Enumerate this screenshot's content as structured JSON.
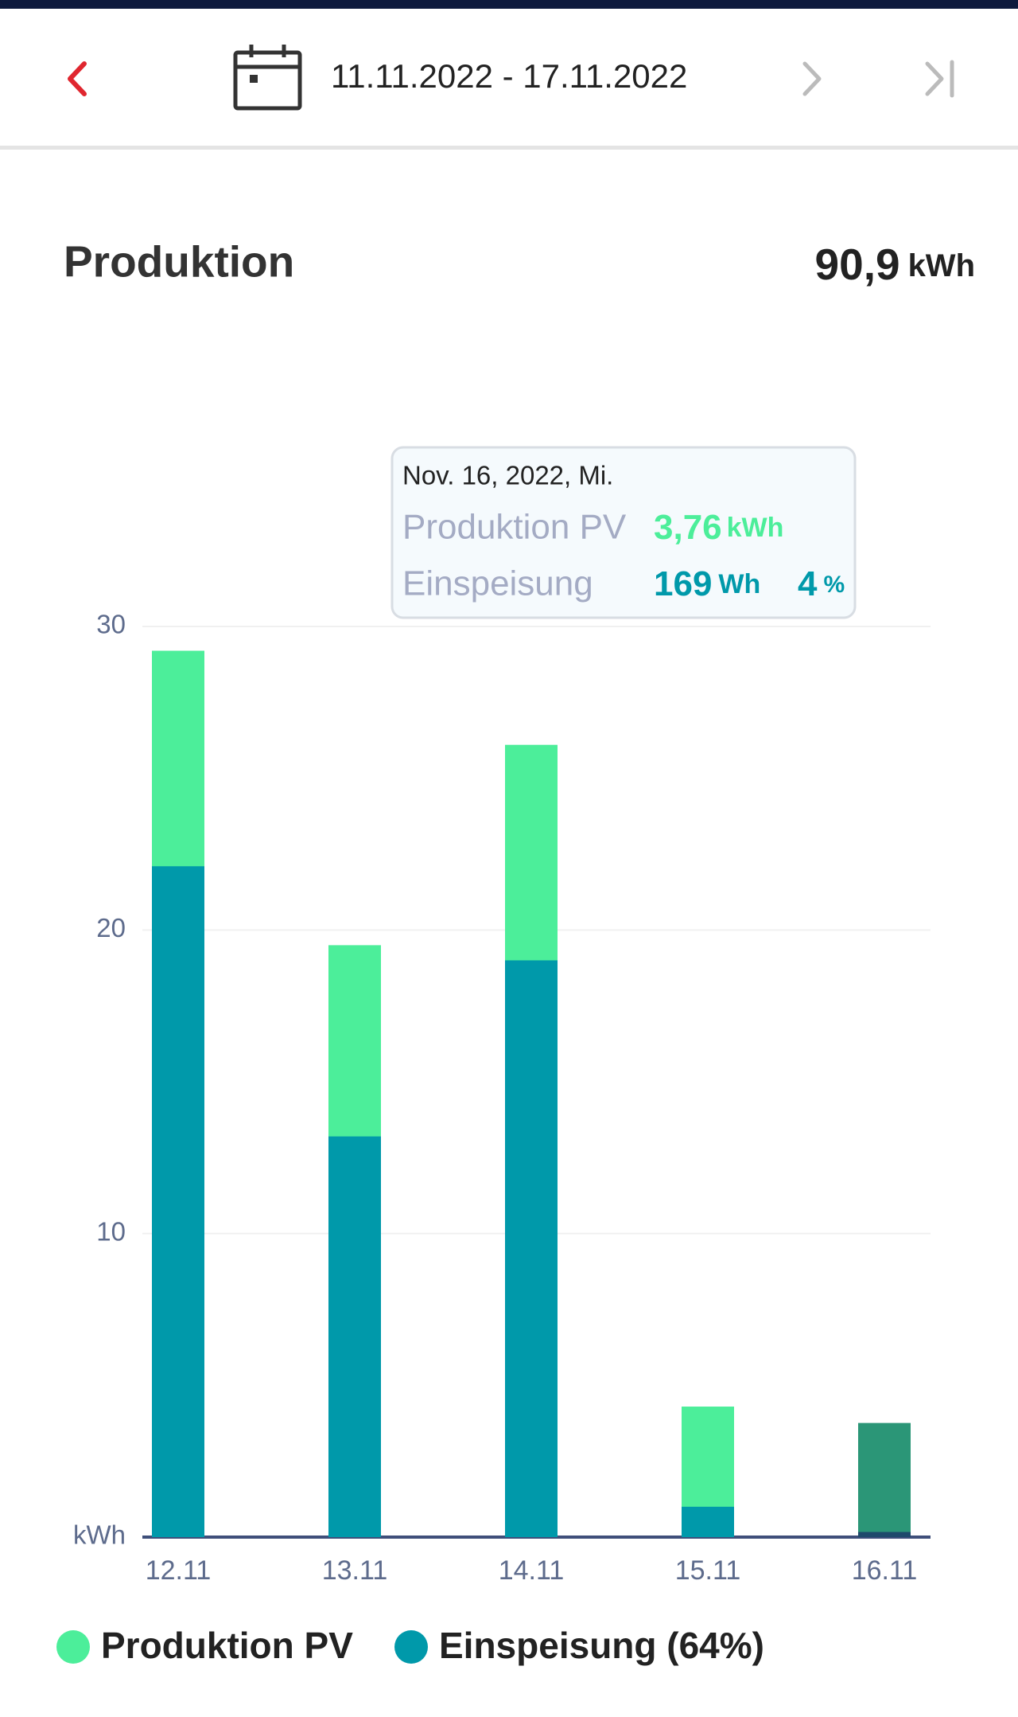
{
  "header": {
    "date_range": "11.11.2022 - 17.11.2022",
    "title": "Produktion",
    "total": {
      "value": "90,9",
      "unit": "kWh"
    }
  },
  "chart_data": {
    "type": "bar",
    "categories": [
      "12.11",
      "13.11",
      "14.11",
      "15.11",
      "16.11"
    ],
    "series": [
      {
        "name": "Produktion PV",
        "color": "#4cee9a",
        "selected_color": "#2b9677",
        "values": [
          29.2,
          19.5,
          26.1,
          4.3,
          3.76
        ]
      },
      {
        "name": "Einspeisung (64%)",
        "color": "#0099aa",
        "selected_color": "#1f4a6b",
        "values": [
          22.1,
          13.2,
          19.0,
          1.0,
          0.169
        ]
      }
    ],
    "selected_index": 4,
    "ylim": [
      0,
      30
    ],
    "yticks": [
      {
        "value": 0,
        "label": "kWh"
      },
      10,
      20,
      30
    ],
    "grid": true,
    "tooltip": {
      "date": "Nov. 16, 2022, Mi.",
      "rows": [
        {
          "label": "Produktion PV",
          "value": "3,76",
          "unit": "kWh"
        },
        {
          "label": "Einspeisung",
          "value": "169",
          "unit": "Wh",
          "share": "4",
          "share_unit": "%"
        }
      ]
    }
  }
}
